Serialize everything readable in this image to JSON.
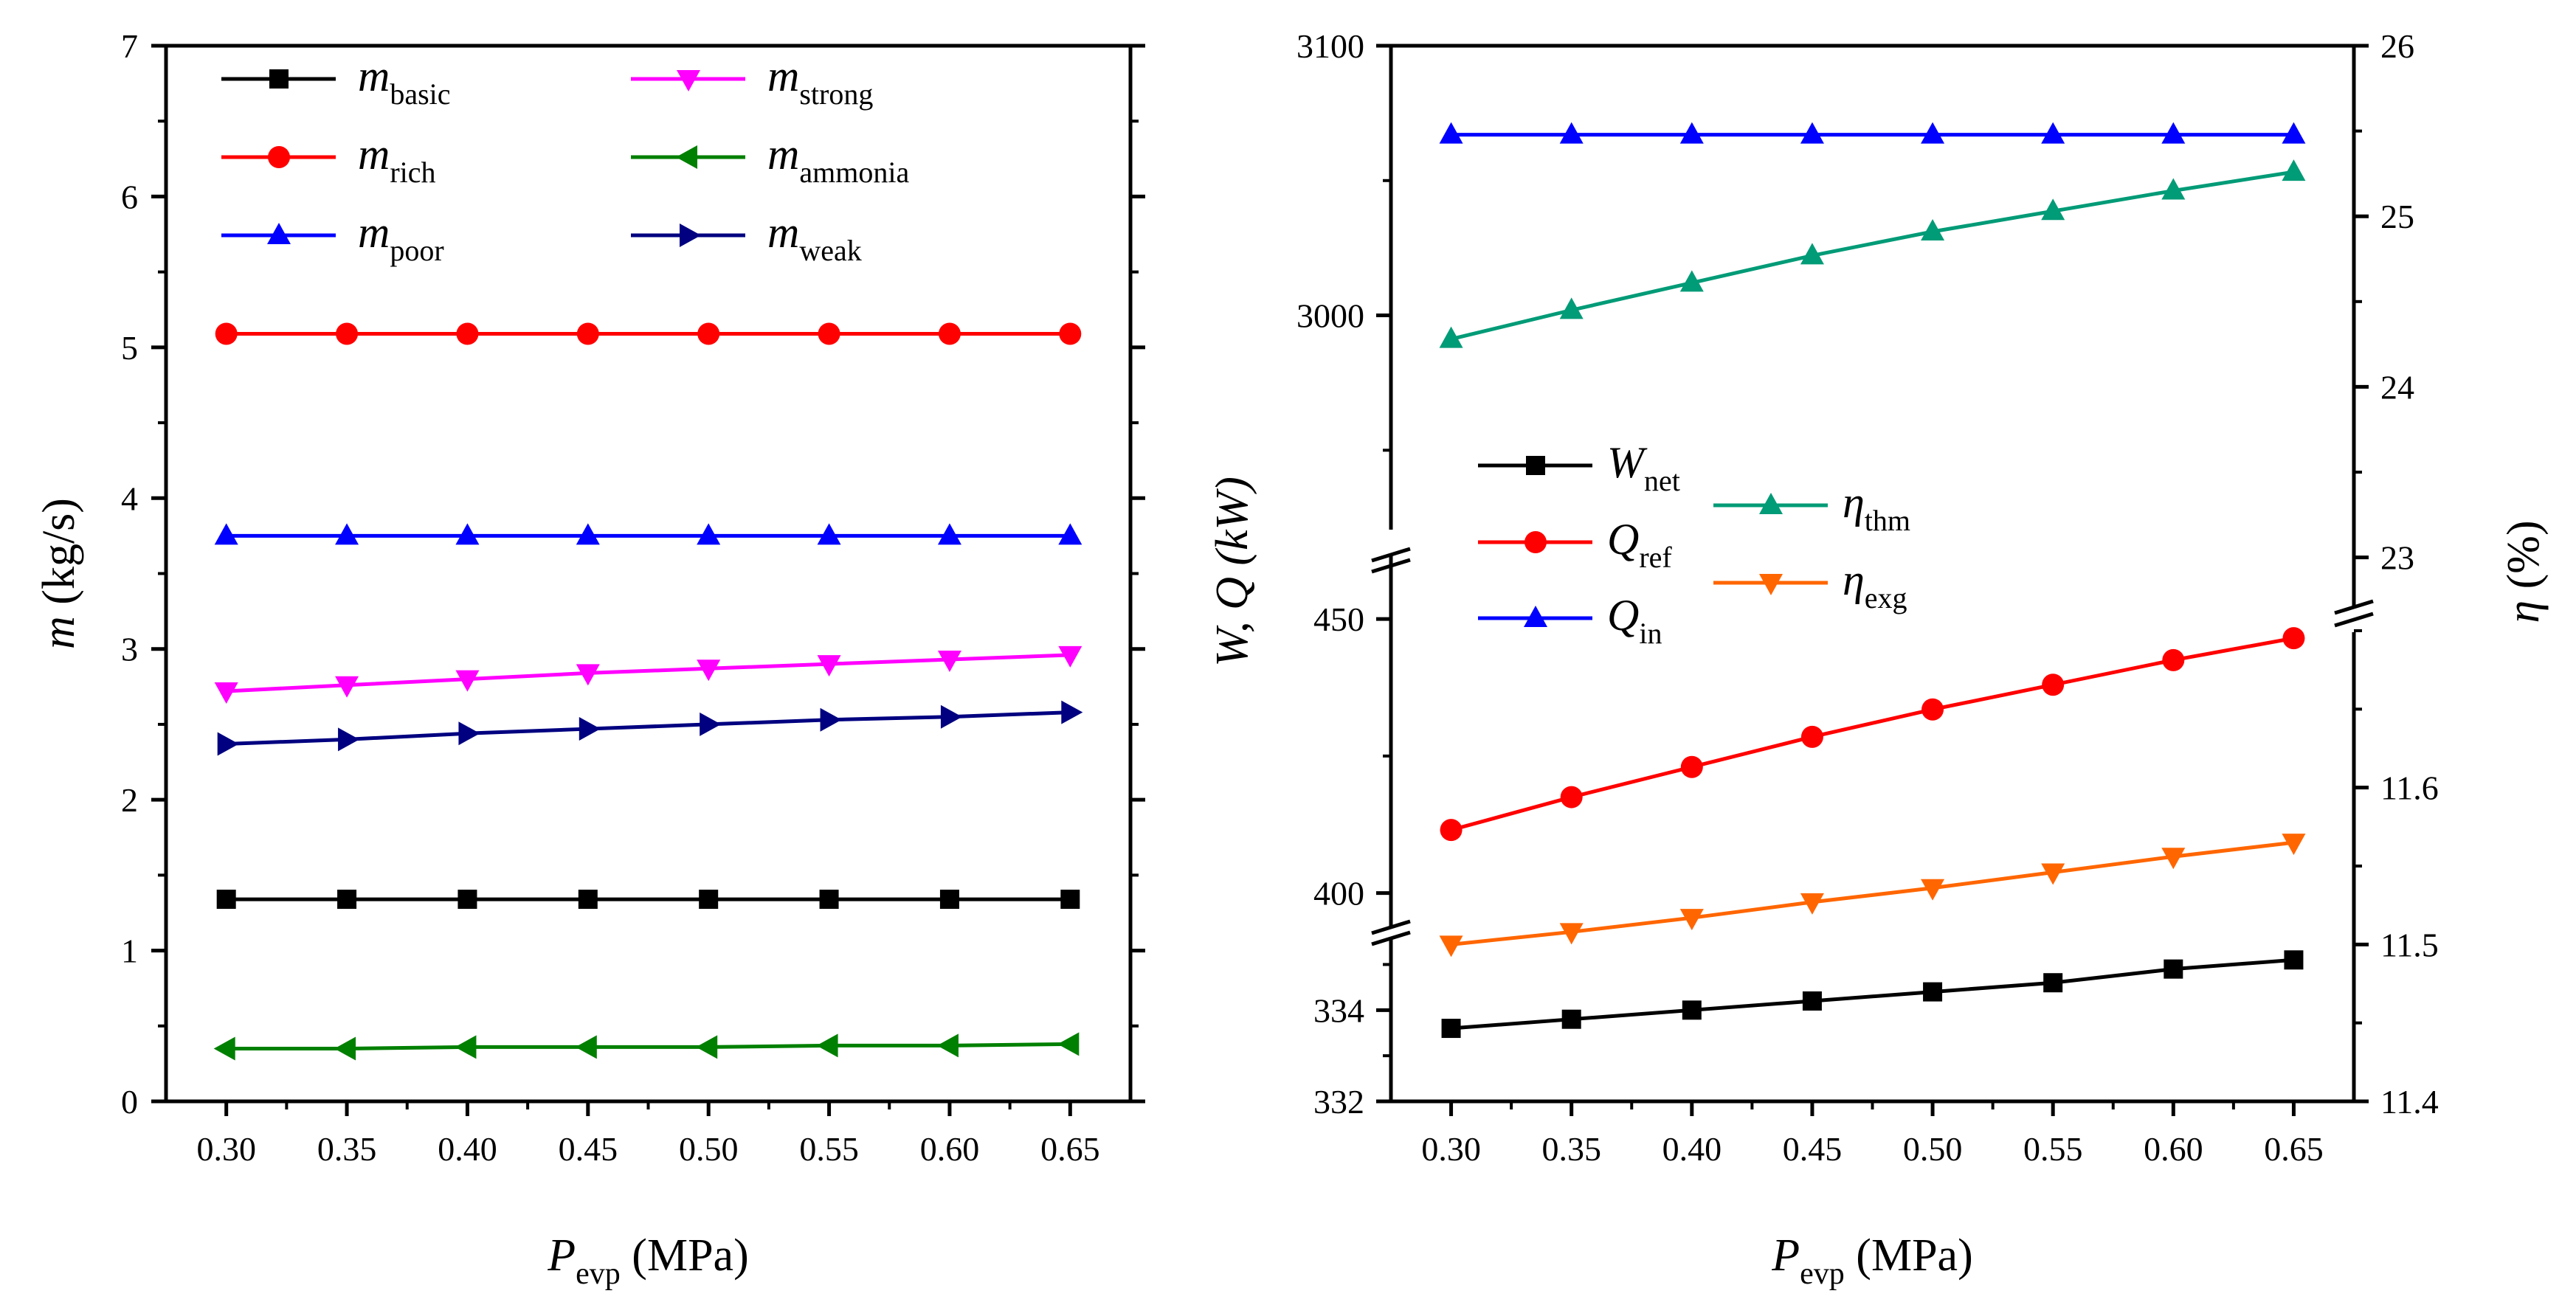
{
  "chart_data": [
    {
      "type": "line",
      "title": "",
      "x": [
        0.3,
        0.35,
        0.4,
        0.45,
        0.5,
        0.55,
        0.6,
        0.65
      ],
      "x_tick_labels": [
        "0.30",
        "0.35",
        "0.40",
        "0.45",
        "0.50",
        "0.55",
        "0.60",
        "0.65"
      ],
      "xlabel": {
        "symbol": "P",
        "sub": "evp",
        "unit": "(MPa)"
      },
      "ylabel": {
        "symbol": "m",
        "unit": "(kg/s)"
      },
      "xlim": [
        0.275,
        0.675
      ],
      "ylim": [
        0,
        7
      ],
      "y_tick_labels": [
        "0",
        "1",
        "2",
        "3",
        "4",
        "5",
        "6",
        "7"
      ],
      "grid": false,
      "legend_position": "top-left",
      "series": [
        {
          "name": "m_basic",
          "label": {
            "symbol": "m",
            "sub": "basic"
          },
          "color": "#000000",
          "marker": "square",
          "values": [
            1.34,
            1.34,
            1.34,
            1.34,
            1.34,
            1.34,
            1.34,
            1.34
          ]
        },
        {
          "name": "m_rich",
          "label": {
            "symbol": "m",
            "sub": "rich"
          },
          "color": "#ff0000",
          "marker": "circle",
          "values": [
            5.09,
            5.09,
            5.09,
            5.09,
            5.09,
            5.09,
            5.09,
            5.09
          ]
        },
        {
          "name": "m_poor",
          "label": {
            "symbol": "m",
            "sub": "poor"
          },
          "color": "#0000ff",
          "marker": "triangle-up",
          "values": [
            3.75,
            3.75,
            3.75,
            3.75,
            3.75,
            3.75,
            3.75,
            3.75
          ]
        },
        {
          "name": "m_strong",
          "label": {
            "symbol": "m",
            "sub": "strong"
          },
          "color": "#ff00ff",
          "marker": "triangle-down",
          "values": [
            2.72,
            2.76,
            2.8,
            2.84,
            2.87,
            2.9,
            2.93,
            2.96
          ]
        },
        {
          "name": "m_ammonia",
          "label": {
            "symbol": "m",
            "sub": "ammonia"
          },
          "color": "#008000",
          "marker": "triangle-left",
          "values": [
            0.35,
            0.35,
            0.36,
            0.36,
            0.36,
            0.37,
            0.37,
            0.38
          ]
        },
        {
          "name": "m_weak",
          "label": {
            "symbol": "m",
            "sub": "weak"
          },
          "color": "#000080",
          "marker": "triangle-right",
          "values": [
            2.37,
            2.4,
            2.44,
            2.47,
            2.5,
            2.53,
            2.55,
            2.58
          ]
        }
      ]
    },
    {
      "type": "line",
      "title": "",
      "x": [
        0.3,
        0.35,
        0.4,
        0.45,
        0.5,
        0.55,
        0.6,
        0.65
      ],
      "x_tick_labels": [
        "0.30",
        "0.35",
        "0.40",
        "0.45",
        "0.50",
        "0.55",
        "0.60",
        "0.65"
      ],
      "xlabel": {
        "symbol": "P",
        "sub": "evp",
        "unit": "(MPa)"
      },
      "ylabel_left": {
        "text": "W, Q (kW)"
      },
      "ylabel_right": {
        "symbol": "η",
        "unit": "(%)"
      },
      "xlim": [
        0.275,
        0.675
      ],
      "broken_axis": true,
      "left_axis_segments": [
        {
          "range": [
            332,
            335.8
          ],
          "ticks": [
            332,
            334
          ],
          "tick_labels": [
            "332",
            "334"
          ]
        },
        {
          "range": [
            392,
            462
          ],
          "ticks": [
            400,
            450
          ],
          "tick_labels": [
            "400",
            "450"
          ]
        },
        {
          "range": [
            2920,
            3100
          ],
          "ticks": [
            3000,
            3100
          ],
          "tick_labels": [
            "3000",
            "3100"
          ]
        }
      ],
      "right_axis_segments": [
        {
          "range": [
            11.4,
            11.7
          ],
          "ticks": [
            11.4,
            11.5,
            11.6
          ],
          "tick_labels": [
            "11.4",
            "11.5",
            "11.6"
          ]
        },
        {
          "range": [
            22.7,
            26
          ],
          "ticks": [
            23,
            24,
            25,
            26
          ],
          "tick_labels": [
            "23",
            "24",
            "25",
            "26"
          ]
        }
      ],
      "grid": false,
      "legend_position": "center-left",
      "series": [
        {
          "name": "W_net",
          "label": {
            "symbol": "W",
            "sub": "net"
          },
          "color": "#000000",
          "marker": "square",
          "axis": "left",
          "values": [
            333.6,
            333.8,
            334.0,
            334.2,
            334.4,
            334.6,
            334.9,
            335.1
          ]
        },
        {
          "name": "Q_ref",
          "label": {
            "symbol": "Q",
            "sub": "ref"
          },
          "color": "#ff0000",
          "marker": "circle",
          "axis": "left",
          "values": [
            411.5,
            417.5,
            423.0,
            428.5,
            433.5,
            438.0,
            442.5,
            446.5
          ]
        },
        {
          "name": "Q_in",
          "label": {
            "symbol": "Q",
            "sub": "in"
          },
          "color": "#0000ff",
          "marker": "triangle-up",
          "axis": "left",
          "values": [
            3067,
            3067,
            3067,
            3067,
            3067,
            3067,
            3067,
            3067
          ]
        },
        {
          "name": "eta_thm",
          "label": {
            "symbol": "η",
            "sub": "thm"
          },
          "color": "#009b77",
          "marker": "triangle-up",
          "axis": "right",
          "values": [
            24.28,
            24.45,
            24.61,
            24.77,
            24.91,
            25.03,
            25.15,
            25.26
          ]
        },
        {
          "name": "eta_exg",
          "label": {
            "symbol": "η",
            "sub": "exg"
          },
          "color": "#ff6600",
          "marker": "triangle-down",
          "axis": "right",
          "values": [
            11.5,
            11.508,
            11.517,
            11.527,
            11.536,
            11.546,
            11.556,
            11.565
          ]
        }
      ]
    }
  ]
}
